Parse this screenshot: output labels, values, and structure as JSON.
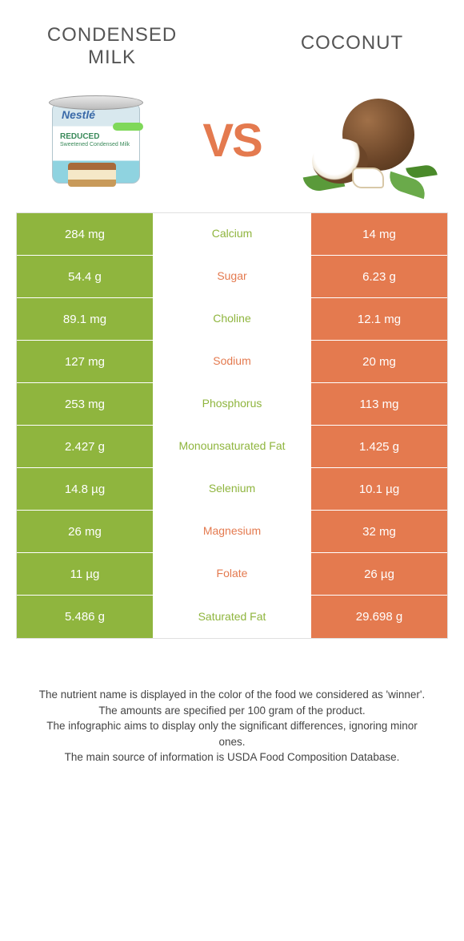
{
  "header": {
    "left_title": "CONDENSED MILK",
    "right_title": "COCONUT",
    "vs": "VS"
  },
  "can": {
    "brand": "Nestlé",
    "line1": "REDUCED",
    "line2": "Sweetened Condensed Milk"
  },
  "colors": {
    "green": "#8fb53e",
    "orange": "#e47a4f"
  },
  "rows": [
    {
      "left": "284 mg",
      "label": "Calcium",
      "right": "14 mg",
      "winner": "left"
    },
    {
      "left": "54.4 g",
      "label": "Sugar",
      "right": "6.23 g",
      "winner": "right"
    },
    {
      "left": "89.1 mg",
      "label": "Choline",
      "right": "12.1 mg",
      "winner": "left"
    },
    {
      "left": "127 mg",
      "label": "Sodium",
      "right": "20 mg",
      "winner": "right"
    },
    {
      "left": "253 mg",
      "label": "Phosphorus",
      "right": "113 mg",
      "winner": "left"
    },
    {
      "left": "2.427 g",
      "label": "Monounsaturated Fat",
      "right": "1.425 g",
      "winner": "left"
    },
    {
      "left": "14.8 µg",
      "label": "Selenium",
      "right": "10.1 µg",
      "winner": "left"
    },
    {
      "left": "26 mg",
      "label": "Magnesium",
      "right": "32 mg",
      "winner": "right"
    },
    {
      "left": "11 µg",
      "label": "Folate",
      "right": "26 µg",
      "winner": "right"
    },
    {
      "left": "5.486 g",
      "label": "Saturated Fat",
      "right": "29.698 g",
      "winner": "left"
    }
  ],
  "footer": {
    "line1": "The nutrient name is displayed in the color of the food we considered as 'winner'.",
    "line2": "The amounts are specified per 100 gram of the product.",
    "line3": "The infographic aims to display only the significant differences, ignoring minor ones.",
    "line4": "The main source of information is USDA Food Composition Database."
  }
}
